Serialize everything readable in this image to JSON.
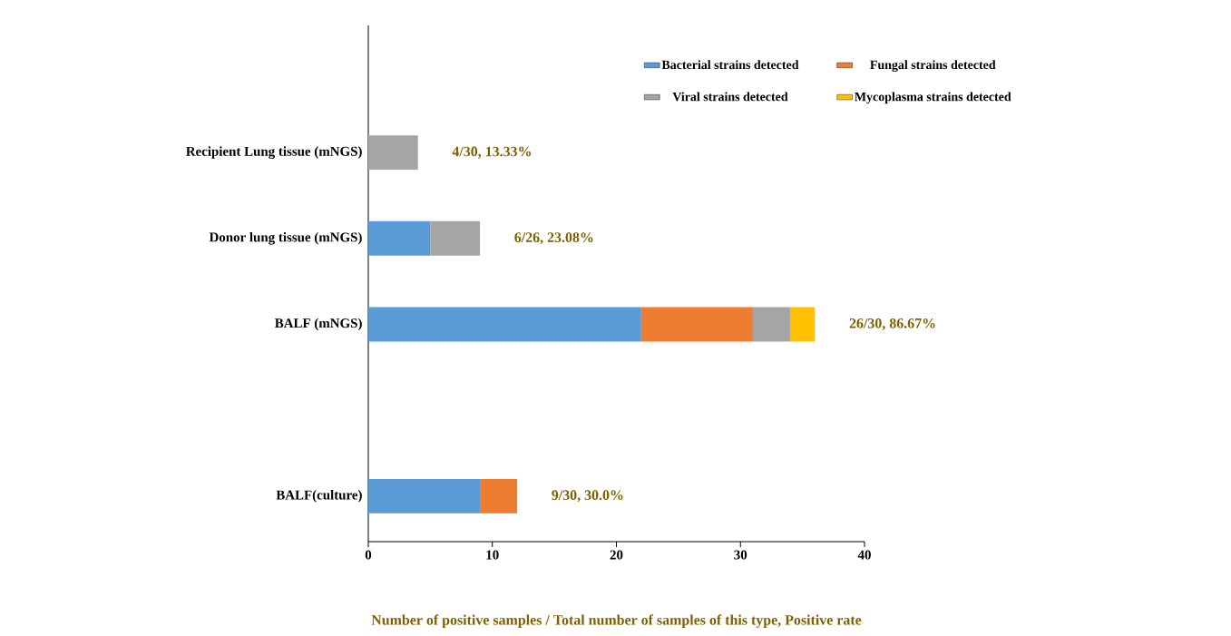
{
  "chart_data": {
    "type": "bar",
    "orientation": "horizontal",
    "stacked": true,
    "categories": [
      "Recipient Lung tissue (mNGS)",
      "Donor lung tissue (mNGS)",
      "BALF (mNGS)",
      null,
      "BALF(culture)"
    ],
    "series": [
      {
        "name": "Bacterial strains detected",
        "color": "#5b9bd5",
        "values": [
          null,
          5,
          22,
          null,
          9
        ]
      },
      {
        "name": "Fungal strains detected",
        "color": "#ed7d31",
        "values": [
          null,
          null,
          9,
          null,
          3
        ]
      },
      {
        "name": "Viral strains detected",
        "color": "#a5a5a5",
        "values": [
          4,
          4,
          3,
          null,
          null
        ]
      },
      {
        "name": "Mycoplasma strains detected",
        "color": "#ffc000",
        "values": [
          null,
          null,
          2,
          null,
          null
        ]
      }
    ],
    "totals": [
      "4/30, 13.33%",
      "6/26, 23.08%",
      "26/30, 86.67%",
      null,
      "9/30, 30.0%"
    ],
    "xlim": [
      0,
      40
    ],
    "xticks": [
      0,
      10,
      20,
      30,
      40
    ],
    "xlabel": "Number of positive samples / Total number of samples of this type, Positive rate",
    "legend": "top right",
    "grid": false
  }
}
